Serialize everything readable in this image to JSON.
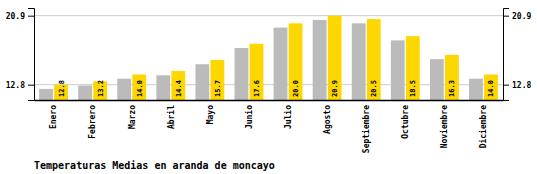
{
  "chart_data": {
    "type": "bar",
    "title": "Temperaturas Medias en aranda de moncayo",
    "categories": [
      "Enero",
      "Febrero",
      "Marzo",
      "Abril",
      "Mayo",
      "Junio",
      "Julio",
      "Agosto",
      "Septiembre",
      "Octubre",
      "Noviembre",
      "Diciembre"
    ],
    "series": [
      {
        "color": "#BBBBBB",
        "values": [
          12.3,
          12.7,
          13.5,
          13.9,
          15.2,
          17.1,
          19.5,
          20.4,
          20.0,
          18.0,
          15.8,
          13.5
        ]
      },
      {
        "color": "#FFD700",
        "values": [
          12.8,
          13.2,
          14.0,
          14.4,
          15.7,
          17.6,
          20.0,
          20.9,
          20.5,
          18.5,
          16.3,
          14.0
        ],
        "data_labels": true,
        "value_labels": [
          "12.8",
          "13.2",
          "14.0",
          "14.4",
          "15.7",
          "17.6",
          "20.0",
          "20.9",
          "20.5",
          "18.5",
          "16.3",
          "14.0"
        ]
      }
    ],
    "ylim": [
      11.0,
      21.8
    ],
    "yticks": [
      12.8,
      20.9
    ],
    "y2lim": [
      11.0,
      21.8
    ],
    "y2ticks": [
      12.8,
      20.9
    ],
    "grid": true
  }
}
